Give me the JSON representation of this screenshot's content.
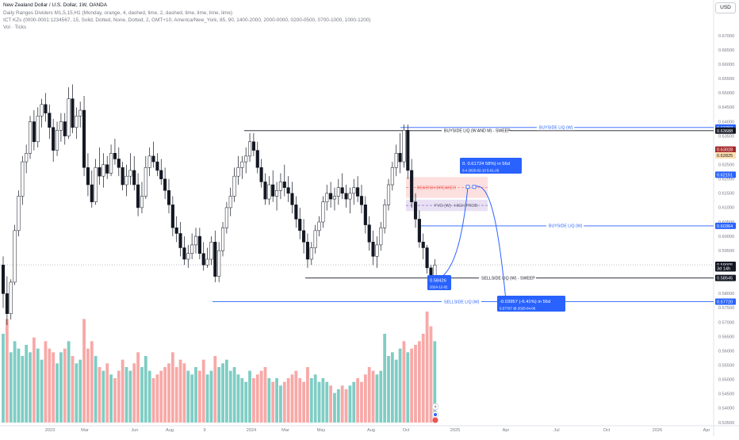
{
  "header": {
    "title": "New Zealand Dollar / U.S. Dollar, 1W, OANDA",
    "indicator1": "Daily Ranges Dividers M1,5,15,H1 (Monday, orange, 4, dashed, lime, 2, dashed, lime, lime, lime, lime)",
    "indicator2": "ICT KZs (0000-0001:1234567, 15, Solid, Dotted, None, Dotted, 2, GMT+10, America/New_York, 85, 90, 1400-2000, 2000-0000, 0200-0500, 0700-1000, 1000-1200)",
    "indicator3": "Vol · Ticks"
  },
  "currency_button": "USD",
  "colors": {
    "up": "#26a69a",
    "down": "#ef5350",
    "candle_up": "#ffffff",
    "candle_down": "#131722",
    "line_blue": "#2962ff",
    "line_black": "#131722",
    "vol_up": "#7fcdc4",
    "vol_down": "#f7a9a7"
  },
  "price_axis": {
    "ticks": [
      "0.67000",
      "0.66500",
      "0.66000",
      "0.65500",
      "0.65000",
      "0.64500",
      "0.64000",
      "0.63500",
      "0.63000",
      "0.62500",
      "0.62000",
      "0.61500",
      "0.61000",
      "0.60500",
      "0.60000",
      "0.59500",
      "0.59000",
      "0.58500",
      "0.58000",
      "0.57500",
      "0.57000",
      "0.56500",
      "0.56000",
      "0.55500",
      "0.55000",
      "0.54500",
      "0.54000",
      "0.53500"
    ],
    "labels": [
      {
        "text": "0.63797",
        "bg": "#2962ff",
        "fg": "#ffffff",
        "price": 0.63797
      },
      {
        "text": "0.63688",
        "bg": "#131722",
        "fg": "#ffffff",
        "price": 0.63688
      },
      {
        "text": "0.63028",
        "bg": "#a52a2a",
        "fg": "#ffffff",
        "price": 0.63028
      },
      {
        "text": "0.62825",
        "bg": "#ffe0b2",
        "fg": "#131722",
        "price": 0.62825
      },
      {
        "text": "0.62151",
        "bg": "#2962ff",
        "fg": "#ffffff",
        "price": 0.62151
      },
      {
        "text": "0.60364",
        "bg": "#2962ff",
        "fg": "#ffffff",
        "price": 0.60364
      },
      {
        "text": "0.59005",
        "bg": "#131722",
        "fg": "#ffffff",
        "price": 0.59005
      },
      {
        "text": "3d 14h",
        "bg": "#131722",
        "fg": "#ffffff",
        "price": 0.5888
      },
      {
        "text": "0.58545",
        "bg": "#131722",
        "fg": "#ffffff",
        "price": 0.58545
      },
      {
        "text": "0.57720",
        "bg": "#2962ff",
        "fg": "#ffffff",
        "price": 0.5772
      }
    ]
  },
  "time_axis": [
    "2023",
    "Mar",
    "Jun",
    "Aug",
    "9",
    "2024",
    "Mar",
    "May",
    "Aug",
    "Oct",
    "2025",
    "Apr",
    "Jul",
    "Oct",
    "2026",
    "Apr"
  ],
  "annotations": {
    "buyside_w_and_m": "BUYSIDE LIQ (W AND M) - SWEEP",
    "buyside_w_top": "BUYSIDE LIQ (W)",
    "buyside_w": "BUYSIDE LIQ (W)",
    "bearish_breaker": "BEARISH BREAKER",
    "fvg": "FVG (W) - HIGH PROB",
    "sellside_sweep": "SELLSIDE LIQ (W) - SWEEP",
    "sellside_w": "SELLSIDE LIQ (W)"
  },
  "callouts": {
    "low_price": "0.58426",
    "low_date": "2024-12-02",
    "target_up_line1": "0.  0.61724  58%) in 56d",
    "target_up_line2": "0.4  2025-02-10  5-01-26",
    "target_down_line1": "-0.03957 (-6.41%) in 56d",
    "target_down_line2": "0.57767 @ 2025-04-06"
  },
  "chart_data": {
    "type": "candlestick",
    "symbol": "NZDUSD",
    "timeframe": "1W",
    "ylim": [
      0.535,
      0.675
    ],
    "last_price": 0.59005,
    "ohlc": [
      [
        0.59,
        0.593,
        0.575,
        0.58
      ],
      [
        0.58,
        0.586,
        0.569,
        0.573
      ],
      [
        0.573,
        0.585,
        0.571,
        0.584
      ],
      [
        0.584,
        0.604,
        0.583,
        0.602
      ],
      [
        0.602,
        0.616,
        0.6,
        0.614
      ],
      [
        0.614,
        0.628,
        0.611,
        0.626
      ],
      [
        0.626,
        0.632,
        0.622,
        0.629
      ],
      [
        0.629,
        0.642,
        0.627,
        0.64
      ],
      [
        0.64,
        0.644,
        0.63,
        0.633
      ],
      [
        0.633,
        0.645,
        0.631,
        0.642
      ],
      [
        0.642,
        0.648,
        0.638,
        0.646
      ],
      [
        0.646,
        0.65,
        0.64,
        0.643
      ],
      [
        0.643,
        0.646,
        0.634,
        0.638
      ],
      [
        0.638,
        0.641,
        0.626,
        0.63
      ],
      [
        0.63,
        0.64,
        0.628,
        0.637
      ],
      [
        0.637,
        0.643,
        0.633,
        0.64
      ],
      [
        0.64,
        0.643,
        0.632,
        0.635
      ],
      [
        0.635,
        0.652,
        0.634,
        0.648
      ],
      [
        0.648,
        0.653,
        0.636,
        0.638
      ],
      [
        0.638,
        0.645,
        0.634,
        0.642
      ],
      [
        0.642,
        0.647,
        0.638,
        0.644
      ],
      [
        0.644,
        0.649,
        0.621,
        0.624
      ],
      [
        0.624,
        0.629,
        0.614,
        0.618
      ],
      [
        0.618,
        0.623,
        0.61,
        0.612
      ],
      [
        0.612,
        0.627,
        0.611,
        0.624
      ],
      [
        0.624,
        0.631,
        0.618,
        0.621
      ],
      [
        0.621,
        0.629,
        0.617,
        0.625
      ],
      [
        0.625,
        0.628,
        0.62,
        0.622
      ],
      [
        0.622,
        0.632,
        0.621,
        0.629
      ],
      [
        0.629,
        0.634,
        0.625,
        0.627
      ],
      [
        0.627,
        0.631,
        0.621,
        0.624
      ],
      [
        0.624,
        0.626,
        0.616,
        0.618
      ],
      [
        0.618,
        0.625,
        0.614,
        0.621
      ],
      [
        0.621,
        0.629,
        0.618,
        0.623
      ],
      [
        0.623,
        0.628,
        0.616,
        0.618
      ],
      [
        0.618,
        0.622,
        0.607,
        0.61
      ],
      [
        0.61,
        0.619,
        0.608,
        0.614
      ],
      [
        0.614,
        0.628,
        0.613,
        0.624
      ],
      [
        0.624,
        0.631,
        0.621,
        0.628
      ],
      [
        0.628,
        0.633,
        0.624,
        0.626
      ],
      [
        0.626,
        0.629,
        0.621,
        0.623
      ],
      [
        0.623,
        0.627,
        0.618,
        0.62
      ],
      [
        0.62,
        0.624,
        0.613,
        0.616
      ],
      [
        0.616,
        0.62,
        0.608,
        0.611
      ],
      [
        0.611,
        0.614,
        0.6,
        0.603
      ],
      [
        0.603,
        0.607,
        0.598,
        0.601
      ],
      [
        0.601,
        0.605,
        0.593,
        0.596
      ],
      [
        0.596,
        0.6,
        0.59,
        0.592
      ],
      [
        0.592,
        0.597,
        0.589,
        0.594
      ],
      [
        0.594,
        0.601,
        0.592,
        0.597
      ],
      [
        0.597,
        0.603,
        0.594,
        0.6
      ],
      [
        0.6,
        0.603,
        0.592,
        0.594
      ],
      [
        0.594,
        0.598,
        0.588,
        0.59
      ],
      [
        0.59,
        0.596,
        0.589,
        0.592
      ],
      [
        0.592,
        0.6,
        0.59,
        0.598
      ],
      [
        0.598,
        0.602,
        0.584,
        0.586
      ],
      [
        0.586,
        0.598,
        0.584,
        0.595
      ],
      [
        0.595,
        0.605,
        0.593,
        0.603
      ],
      [
        0.603,
        0.612,
        0.601,
        0.61
      ],
      [
        0.61,
        0.617,
        0.607,
        0.614
      ],
      [
        0.614,
        0.624,
        0.612,
        0.621
      ],
      [
        0.621,
        0.628,
        0.618,
        0.624
      ],
      [
        0.624,
        0.628,
        0.62,
        0.626
      ],
      [
        0.626,
        0.631,
        0.622,
        0.628
      ],
      [
        0.628,
        0.636,
        0.626,
        0.633
      ],
      [
        0.633,
        0.636,
        0.628,
        0.63
      ],
      [
        0.63,
        0.633,
        0.622,
        0.624
      ],
      [
        0.624,
        0.627,
        0.617,
        0.619
      ],
      [
        0.619,
        0.622,
        0.611,
        0.613
      ],
      [
        0.613,
        0.621,
        0.611,
        0.618
      ],
      [
        0.618,
        0.623,
        0.612,
        0.614
      ],
      [
        0.614,
        0.619,
        0.609,
        0.616
      ],
      [
        0.616,
        0.622,
        0.613,
        0.619
      ],
      [
        0.619,
        0.625,
        0.614,
        0.617
      ],
      [
        0.617,
        0.621,
        0.612,
        0.615
      ],
      [
        0.615,
        0.619,
        0.608,
        0.611
      ],
      [
        0.611,
        0.614,
        0.603,
        0.606
      ],
      [
        0.606,
        0.61,
        0.599,
        0.602
      ],
      [
        0.602,
        0.606,
        0.594,
        0.598
      ],
      [
        0.598,
        0.601,
        0.589,
        0.592
      ],
      [
        0.592,
        0.598,
        0.59,
        0.596
      ],
      [
        0.596,
        0.604,
        0.594,
        0.602
      ],
      [
        0.602,
        0.607,
        0.6,
        0.605
      ],
      [
        0.605,
        0.614,
        0.603,
        0.612
      ],
      [
        0.612,
        0.618,
        0.609,
        0.615
      ],
      [
        0.615,
        0.619,
        0.61,
        0.613
      ],
      [
        0.613,
        0.617,
        0.609,
        0.614
      ],
      [
        0.614,
        0.62,
        0.611,
        0.617
      ],
      [
        0.617,
        0.622,
        0.613,
        0.615
      ],
      [
        0.615,
        0.618,
        0.61,
        0.613
      ],
      [
        0.613,
        0.617,
        0.608,
        0.615
      ],
      [
        0.615,
        0.62,
        0.611,
        0.617
      ],
      [
        0.617,
        0.621,
        0.612,
        0.614
      ],
      [
        0.614,
        0.618,
        0.608,
        0.611
      ],
      [
        0.611,
        0.614,
        0.601,
        0.604
      ],
      [
        0.604,
        0.607,
        0.595,
        0.598
      ],
      [
        0.598,
        0.602,
        0.59,
        0.593
      ],
      [
        0.593,
        0.6,
        0.589,
        0.597
      ],
      [
        0.597,
        0.605,
        0.595,
        0.603
      ],
      [
        0.603,
        0.613,
        0.601,
        0.611
      ],
      [
        0.611,
        0.62,
        0.609,
        0.618
      ],
      [
        0.618,
        0.626,
        0.616,
        0.624
      ],
      [
        0.624,
        0.632,
        0.621,
        0.629
      ],
      [
        0.629,
        0.636,
        0.622,
        0.626
      ],
      [
        0.626,
        0.639,
        0.624,
        0.637
      ],
      [
        0.637,
        0.639,
        0.62,
        0.623
      ],
      [
        0.623,
        0.627,
        0.61,
        0.612
      ],
      [
        0.612,
        0.615,
        0.603,
        0.606
      ],
      [
        0.606,
        0.609,
        0.596,
        0.598
      ],
      [
        0.598,
        0.601,
        0.592,
        0.596
      ],
      [
        0.596,
        0.597,
        0.587,
        0.589
      ],
      [
        0.589,
        0.59,
        0.584,
        0.585
      ],
      [
        0.585,
        0.592,
        0.584,
        0.59
      ]
    ],
    "volume": [
      [
        120,
        1
      ],
      [
        140,
        0
      ],
      [
        95,
        1
      ],
      [
        110,
        1
      ],
      [
        100,
        1
      ],
      [
        90,
        1
      ],
      [
        105,
        1
      ],
      [
        95,
        1
      ],
      [
        115,
        0
      ],
      [
        100,
        1
      ],
      [
        85,
        1
      ],
      [
        110,
        0
      ],
      [
        100,
        0
      ],
      [
        95,
        0
      ],
      [
        80,
        1
      ],
      [
        95,
        1
      ],
      [
        100,
        0
      ],
      [
        110,
        1
      ],
      [
        90,
        0
      ],
      [
        80,
        1
      ],
      [
        85,
        1
      ],
      [
        140,
        0
      ],
      [
        100,
        0
      ],
      [
        110,
        0
      ],
      [
        90,
        1
      ],
      [
        75,
        0
      ],
      [
        70,
        1
      ],
      [
        80,
        0
      ],
      [
        65,
        1
      ],
      [
        60,
        0
      ],
      [
        70,
        0
      ],
      [
        85,
        0
      ],
      [
        75,
        1
      ],
      [
        70,
        1
      ],
      [
        80,
        0
      ],
      [
        95,
        0
      ],
      [
        75,
        1
      ],
      [
        90,
        1
      ],
      [
        70,
        1
      ],
      [
        60,
        0
      ],
      [
        65,
        0
      ],
      [
        70,
        0
      ],
      [
        75,
        0
      ],
      [
        80,
        0
      ],
      [
        95,
        0
      ],
      [
        75,
        0
      ],
      [
        85,
        0
      ],
      [
        80,
        0
      ],
      [
        70,
        1
      ],
      [
        65,
        1
      ],
      [
        75,
        1
      ],
      [
        70,
        0
      ],
      [
        85,
        0
      ],
      [
        65,
        1
      ],
      [
        70,
        1
      ],
      [
        90,
        0
      ],
      [
        75,
        1
      ],
      [
        80,
        1
      ],
      [
        85,
        1
      ],
      [
        70,
        1
      ],
      [
        75,
        1
      ],
      [
        65,
        1
      ],
      [
        60,
        1
      ],
      [
        55,
        1
      ],
      [
        70,
        1
      ],
      [
        60,
        0
      ],
      [
        65,
        0
      ],
      [
        70,
        0
      ],
      [
        75,
        0
      ],
      [
        60,
        1
      ],
      [
        55,
        0
      ],
      [
        60,
        1
      ],
      [
        50,
        1
      ],
      [
        55,
        0
      ],
      [
        60,
        0
      ],
      [
        65,
        0
      ],
      [
        70,
        0
      ],
      [
        60,
        0
      ],
      [
        55,
        0
      ],
      [
        75,
        0
      ],
      [
        60,
        1
      ],
      [
        65,
        1
      ],
      [
        55,
        1
      ],
      [
        60,
        1
      ],
      [
        55,
        1
      ],
      [
        50,
        0
      ],
      [
        40,
        1
      ],
      [
        45,
        1
      ],
      [
        50,
        0
      ],
      [
        45,
        0
      ],
      [
        50,
        1
      ],
      [
        55,
        1
      ],
      [
        60,
        0
      ],
      [
        55,
        0
      ],
      [
        65,
        0
      ],
      [
        75,
        0
      ],
      [
        70,
        0
      ],
      [
        65,
        1
      ],
      [
        70,
        1
      ],
      [
        120,
        1
      ],
      [
        90,
        1
      ],
      [
        95,
        1
      ],
      [
        85,
        1
      ],
      [
        100,
        1
      ],
      [
        110,
        0
      ],
      [
        95,
        1
      ],
      [
        100,
        0
      ],
      [
        105,
        0
      ],
      [
        110,
        0
      ],
      [
        120,
        0
      ],
      [
        150,
        0
      ],
      [
        130,
        0
      ],
      [
        110,
        1
      ]
    ],
    "levels": [
      {
        "label": "BUYSIDE LIQ (W AND M) - SWEEP",
        "price": 0.63688
      },
      {
        "label": "BUYSIDE LIQ (W)",
        "price": 0.63797
      },
      {
        "label": "BUYSIDE LIQ (W)",
        "price": 0.60364
      },
      {
        "label": "SELLSIDE LIQ (W) - SWEEP",
        "price": 0.58545
      },
      {
        "label": "SELLSIDE LIQ (W)",
        "price": 0.5772
      }
    ]
  }
}
